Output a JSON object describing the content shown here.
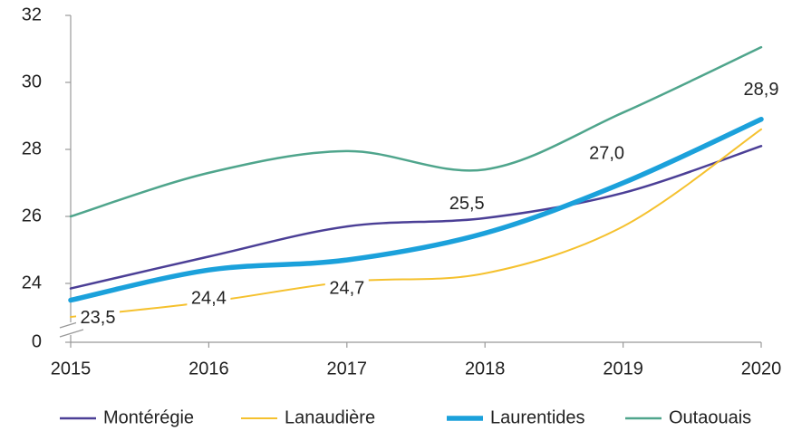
{
  "chart_data": {
    "type": "line",
    "categories": [
      "2015",
      "2016",
      "2017",
      "2018",
      "2019",
      "2020"
    ],
    "series": [
      {
        "name": "Montérégie",
        "color": "#4b3f96",
        "width": 2.5,
        "values": [
          23.85,
          24.8,
          25.7,
          25.95,
          26.7,
          28.1
        ]
      },
      {
        "name": "Lanaudière",
        "color": "#f5c12e",
        "width": 2,
        "values": [
          23.0,
          23.45,
          24.05,
          24.3,
          25.7,
          28.6
        ]
      },
      {
        "name": "Laurentides",
        "color": "#1ba1db",
        "width": 5.5,
        "values": [
          23.5,
          24.4,
          24.7,
          25.5,
          27.0,
          28.9
        ],
        "value_labels": [
          "23,5",
          "24,4",
          "24,7",
          "25,5",
          "27,0",
          "28,9"
        ]
      },
      {
        "name": "Outaouais",
        "color": "#4fa58c",
        "width": 2.5,
        "values": [
          26.0,
          27.3,
          27.95,
          27.4,
          29.1,
          31.05
        ]
      }
    ],
    "ylim": [
      0,
      32
    ],
    "yticks": [
      0,
      24,
      26,
      28,
      30,
      32
    ],
    "axis_break": true,
    "legend": "bottom"
  }
}
